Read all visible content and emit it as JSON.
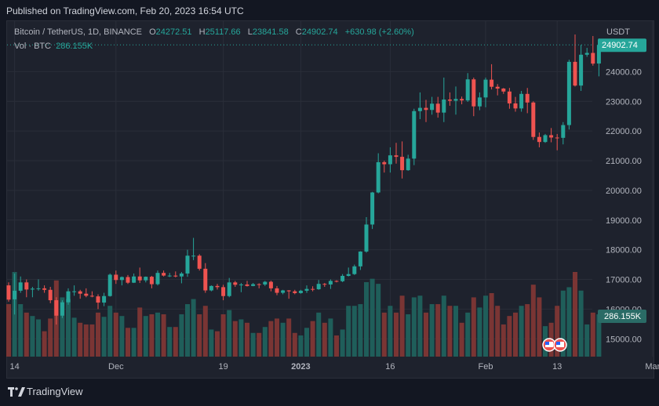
{
  "header": {
    "published": "Published on TradingView.com, Feb 20, 2023 16:54 UTC"
  },
  "legend": {
    "symbol": "Bitcoin / TetherUS, 1D, BINANCE",
    "o_label": "O",
    "o_value": "24272.51",
    "h_label": "H",
    "h_value": "25117.66",
    "l_label": "L",
    "l_value": "23841.58",
    "c_label": "C",
    "c_value": "24902.74",
    "change": "+630.98 (+2.60%)",
    "vol_label": "Vol · BTC",
    "vol_value": "286.155K"
  },
  "axis": {
    "unit": "USDT",
    "last_price_label": "24902.74",
    "last_volume_label": "286.155K"
  },
  "footer": {
    "brand": "TradingView"
  },
  "colors": {
    "up": "#26a69a",
    "down": "#ef5350",
    "background": "#1e222d"
  },
  "chart_data": {
    "type": "candlestick",
    "y_ticks": [
      "15000.00",
      "16000.00",
      "17000.00",
      "18000.00",
      "19000.00",
      "20000.00",
      "21000.00",
      "22000.00",
      "23000.00",
      "24000.00"
    ],
    "y_tick_values": [
      15000,
      16000,
      17000,
      18000,
      19000,
      20000,
      21000,
      22000,
      23000,
      24000
    ],
    "ylim": [
      14400,
      25700
    ],
    "x_ticks": [
      {
        "label": "14",
        "date": "2022-11-14"
      },
      {
        "label": "Dec",
        "date": "2022-12-01"
      },
      {
        "label": "19",
        "date": "2022-12-19"
      },
      {
        "label": "2023",
        "date": "2023-01-01"
      },
      {
        "label": "16",
        "date": "2023-01-16"
      },
      {
        "label": "Feb",
        "date": "2023-02-01"
      },
      {
        "label": "13",
        "date": "2023-02-13"
      },
      {
        "label": "Mar",
        "date": "2023-03-01"
      }
    ],
    "last_price": 24902.74,
    "candles": [
      {
        "date": "2022-11-13",
        "o": 16800,
        "h": 16900,
        "l": 16250,
        "c": 16320,
        "v": 0.62
      },
      {
        "date": "2022-11-14",
        "o": 16330,
        "h": 17200,
        "l": 15820,
        "c": 16620,
        "v": 1.0
      },
      {
        "date": "2022-11-15",
        "o": 16620,
        "h": 17100,
        "l": 16550,
        "c": 16900,
        "v": 0.62
      },
      {
        "date": "2022-11-16",
        "o": 16900,
        "h": 17000,
        "l": 16400,
        "c": 16660,
        "v": 0.52
      },
      {
        "date": "2022-11-17",
        "o": 16660,
        "h": 16750,
        "l": 16400,
        "c": 16690,
        "v": 0.48
      },
      {
        "date": "2022-11-18",
        "o": 16690,
        "h": 17000,
        "l": 16620,
        "c": 16700,
        "v": 0.44
      },
      {
        "date": "2022-11-19",
        "o": 16700,
        "h": 16800,
        "l": 16550,
        "c": 16650,
        "v": 0.3
      },
      {
        "date": "2022-11-20",
        "o": 16650,
        "h": 16750,
        "l": 16200,
        "c": 16300,
        "v": 0.45
      },
      {
        "date": "2022-11-21",
        "o": 16300,
        "h": 16400,
        "l": 15480,
        "c": 15780,
        "v": 0.9
      },
      {
        "date": "2022-11-22",
        "o": 15780,
        "h": 16300,
        "l": 15700,
        "c": 16230,
        "v": 0.7
      },
      {
        "date": "2022-11-23",
        "o": 16230,
        "h": 16700,
        "l": 16150,
        "c": 16600,
        "v": 0.68
      },
      {
        "date": "2022-11-24",
        "o": 16600,
        "h": 16800,
        "l": 16450,
        "c": 16600,
        "v": 0.46
      },
      {
        "date": "2022-11-25",
        "o": 16600,
        "h": 16650,
        "l": 16350,
        "c": 16520,
        "v": 0.4
      },
      {
        "date": "2022-11-26",
        "o": 16520,
        "h": 16700,
        "l": 16400,
        "c": 16450,
        "v": 0.38
      },
      {
        "date": "2022-11-27",
        "o": 16450,
        "h": 16600,
        "l": 16400,
        "c": 16430,
        "v": 0.38
      },
      {
        "date": "2022-11-28",
        "o": 16430,
        "h": 16500,
        "l": 16000,
        "c": 16220,
        "v": 0.52
      },
      {
        "date": "2022-11-29",
        "o": 16220,
        "h": 16550,
        "l": 16100,
        "c": 16440,
        "v": 0.47
      },
      {
        "date": "2022-11-30",
        "o": 16440,
        "h": 17200,
        "l": 16420,
        "c": 17160,
        "v": 0.6
      },
      {
        "date": "2022-12-01",
        "o": 17160,
        "h": 17300,
        "l": 16850,
        "c": 16980,
        "v": 0.52
      },
      {
        "date": "2022-12-02",
        "o": 16980,
        "h": 17100,
        "l": 16800,
        "c": 17080,
        "v": 0.48
      },
      {
        "date": "2022-12-03",
        "o": 17080,
        "h": 17150,
        "l": 16850,
        "c": 16890,
        "v": 0.34
      },
      {
        "date": "2022-12-04",
        "o": 16890,
        "h": 17200,
        "l": 16880,
        "c": 17100,
        "v": 0.34
      },
      {
        "date": "2022-12-05",
        "o": 17100,
        "h": 17400,
        "l": 16880,
        "c": 16970,
        "v": 0.58
      },
      {
        "date": "2022-12-06",
        "o": 16970,
        "h": 17100,
        "l": 16900,
        "c": 17090,
        "v": 0.48
      },
      {
        "date": "2022-12-07",
        "o": 17090,
        "h": 17120,
        "l": 16700,
        "c": 16840,
        "v": 0.5
      },
      {
        "date": "2022-12-08",
        "o": 16840,
        "h": 17300,
        "l": 16800,
        "c": 17220,
        "v": 0.52
      },
      {
        "date": "2022-12-09",
        "o": 17220,
        "h": 17300,
        "l": 17100,
        "c": 17130,
        "v": 0.5
      },
      {
        "date": "2022-12-10",
        "o": 17130,
        "h": 17220,
        "l": 17080,
        "c": 17130,
        "v": 0.35
      },
      {
        "date": "2022-12-11",
        "o": 17130,
        "h": 17270,
        "l": 17070,
        "c": 17100,
        "v": 0.35
      },
      {
        "date": "2022-12-12",
        "o": 17100,
        "h": 17250,
        "l": 16870,
        "c": 17200,
        "v": 0.5
      },
      {
        "date": "2022-12-13",
        "o": 17200,
        "h": 18000,
        "l": 17090,
        "c": 17800,
        "v": 0.62
      },
      {
        "date": "2022-12-14",
        "o": 17800,
        "h": 18400,
        "l": 17650,
        "c": 17800,
        "v": 0.68
      },
      {
        "date": "2022-12-15",
        "o": 17800,
        "h": 17850,
        "l": 17300,
        "c": 17360,
        "v": 0.5
      },
      {
        "date": "2022-12-16",
        "o": 17360,
        "h": 17550,
        "l": 16550,
        "c": 16630,
        "v": 0.6
      },
      {
        "date": "2022-12-17",
        "o": 16630,
        "h": 16800,
        "l": 16600,
        "c": 16780,
        "v": 0.32
      },
      {
        "date": "2022-12-18",
        "o": 16780,
        "h": 16850,
        "l": 16660,
        "c": 16740,
        "v": 0.3
      },
      {
        "date": "2022-12-19",
        "o": 16740,
        "h": 16820,
        "l": 16300,
        "c": 16440,
        "v": 0.5
      },
      {
        "date": "2022-12-20",
        "o": 16440,
        "h": 17050,
        "l": 16400,
        "c": 16900,
        "v": 0.55
      },
      {
        "date": "2022-12-21",
        "o": 16900,
        "h": 16950,
        "l": 16750,
        "c": 16820,
        "v": 0.42
      },
      {
        "date": "2022-12-22",
        "o": 16820,
        "h": 16880,
        "l": 16570,
        "c": 16830,
        "v": 0.44
      },
      {
        "date": "2022-12-23",
        "o": 16830,
        "h": 16950,
        "l": 16760,
        "c": 16780,
        "v": 0.4
      },
      {
        "date": "2022-12-24",
        "o": 16780,
        "h": 16880,
        "l": 16770,
        "c": 16840,
        "v": 0.28
      },
      {
        "date": "2022-12-25",
        "o": 16840,
        "h": 16870,
        "l": 16700,
        "c": 16830,
        "v": 0.28
      },
      {
        "date": "2022-12-26",
        "o": 16830,
        "h": 16950,
        "l": 16780,
        "c": 16920,
        "v": 0.35
      },
      {
        "date": "2022-12-27",
        "o": 16920,
        "h": 16960,
        "l": 16600,
        "c": 16700,
        "v": 0.42
      },
      {
        "date": "2022-12-28",
        "o": 16700,
        "h": 16780,
        "l": 16470,
        "c": 16550,
        "v": 0.45
      },
      {
        "date": "2022-12-29",
        "o": 16550,
        "h": 16650,
        "l": 16500,
        "c": 16630,
        "v": 0.4
      },
      {
        "date": "2022-12-30",
        "o": 16630,
        "h": 16640,
        "l": 16350,
        "c": 16600,
        "v": 0.45
      },
      {
        "date": "2022-12-31",
        "o": 16600,
        "h": 16650,
        "l": 16500,
        "c": 16540,
        "v": 0.28
      },
      {
        "date": "2023-01-01",
        "o": 16540,
        "h": 16650,
        "l": 16520,
        "c": 16620,
        "v": 0.25
      },
      {
        "date": "2023-01-02",
        "o": 16620,
        "h": 16800,
        "l": 16550,
        "c": 16680,
        "v": 0.34
      },
      {
        "date": "2023-01-03",
        "o": 16680,
        "h": 16770,
        "l": 16600,
        "c": 16670,
        "v": 0.42
      },
      {
        "date": "2023-01-04",
        "o": 16670,
        "h": 16980,
        "l": 16650,
        "c": 16850,
        "v": 0.52
      },
      {
        "date": "2023-01-05",
        "o": 16850,
        "h": 16880,
        "l": 16750,
        "c": 16830,
        "v": 0.4
      },
      {
        "date": "2023-01-06",
        "o": 16830,
        "h": 17000,
        "l": 16680,
        "c": 16950,
        "v": 0.45
      },
      {
        "date": "2023-01-07",
        "o": 16950,
        "h": 16970,
        "l": 16900,
        "c": 16940,
        "v": 0.25
      },
      {
        "date": "2023-01-08",
        "o": 16940,
        "h": 17180,
        "l": 16910,
        "c": 17120,
        "v": 0.32
      },
      {
        "date": "2023-01-09",
        "o": 17120,
        "h": 17400,
        "l": 17100,
        "c": 17180,
        "v": 0.6
      },
      {
        "date": "2023-01-10",
        "o": 17180,
        "h": 17500,
        "l": 17150,
        "c": 17440,
        "v": 0.6
      },
      {
        "date": "2023-01-11",
        "o": 17440,
        "h": 17950,
        "l": 17320,
        "c": 17940,
        "v": 0.62
      },
      {
        "date": "2023-01-12",
        "o": 17940,
        "h": 19100,
        "l": 17900,
        "c": 18850,
        "v": 0.88
      },
      {
        "date": "2023-01-13",
        "o": 18850,
        "h": 19950,
        "l": 18700,
        "c": 19930,
        "v": 0.92
      },
      {
        "date": "2023-01-14",
        "o": 19930,
        "h": 21250,
        "l": 19900,
        "c": 20950,
        "v": 0.86
      },
      {
        "date": "2023-01-15",
        "o": 20950,
        "h": 21000,
        "l": 20600,
        "c": 20880,
        "v": 0.52
      },
      {
        "date": "2023-01-16",
        "o": 20880,
        "h": 21450,
        "l": 20600,
        "c": 21180,
        "v": 0.6
      },
      {
        "date": "2023-01-17",
        "o": 21180,
        "h": 21600,
        "l": 20900,
        "c": 21130,
        "v": 0.52
      },
      {
        "date": "2023-01-18",
        "o": 21130,
        "h": 21650,
        "l": 20400,
        "c": 20680,
        "v": 0.72
      },
      {
        "date": "2023-01-19",
        "o": 20680,
        "h": 21200,
        "l": 20660,
        "c": 21070,
        "v": 0.5
      },
      {
        "date": "2023-01-20",
        "o": 21070,
        "h": 22750,
        "l": 20850,
        "c": 22670,
        "v": 0.7
      },
      {
        "date": "2023-01-21",
        "o": 22670,
        "h": 23300,
        "l": 22400,
        "c": 22780,
        "v": 0.72
      },
      {
        "date": "2023-01-22",
        "o": 22780,
        "h": 23050,
        "l": 22300,
        "c": 22710,
        "v": 0.52
      },
      {
        "date": "2023-01-23",
        "o": 22710,
        "h": 23150,
        "l": 22550,
        "c": 22920,
        "v": 0.62
      },
      {
        "date": "2023-01-24",
        "o": 22920,
        "h": 23150,
        "l": 22450,
        "c": 22620,
        "v": 0.62
      },
      {
        "date": "2023-01-25",
        "o": 22620,
        "h": 23800,
        "l": 22300,
        "c": 23060,
        "v": 0.72
      },
      {
        "date": "2023-01-26",
        "o": 23060,
        "h": 23300,
        "l": 22850,
        "c": 23020,
        "v": 0.6
      },
      {
        "date": "2023-01-27",
        "o": 23020,
        "h": 23500,
        "l": 22550,
        "c": 23080,
        "v": 0.6
      },
      {
        "date": "2023-01-28",
        "o": 23080,
        "h": 23160,
        "l": 22900,
        "c": 23030,
        "v": 0.4
      },
      {
        "date": "2023-01-29",
        "o": 23030,
        "h": 23950,
        "l": 22980,
        "c": 23740,
        "v": 0.52
      },
      {
        "date": "2023-01-30",
        "o": 23740,
        "h": 23800,
        "l": 22500,
        "c": 22830,
        "v": 0.7
      },
      {
        "date": "2023-01-31",
        "o": 22830,
        "h": 23300,
        "l": 22700,
        "c": 23130,
        "v": 0.58
      },
      {
        "date": "2023-02-01",
        "o": 23130,
        "h": 23800,
        "l": 22800,
        "c": 23730,
        "v": 0.72
      },
      {
        "date": "2023-02-02",
        "o": 23730,
        "h": 24250,
        "l": 23400,
        "c": 23490,
        "v": 0.75
      },
      {
        "date": "2023-02-03",
        "o": 23490,
        "h": 23580,
        "l": 23200,
        "c": 23430,
        "v": 0.6
      },
      {
        "date": "2023-02-04",
        "o": 23430,
        "h": 23450,
        "l": 23250,
        "c": 23330,
        "v": 0.38
      },
      {
        "date": "2023-02-05",
        "o": 23330,
        "h": 23450,
        "l": 22750,
        "c": 22930,
        "v": 0.48
      },
      {
        "date": "2023-02-06",
        "o": 22930,
        "h": 23150,
        "l": 22650,
        "c": 22760,
        "v": 0.52
      },
      {
        "date": "2023-02-07",
        "o": 22760,
        "h": 23350,
        "l": 22650,
        "c": 23250,
        "v": 0.6
      },
      {
        "date": "2023-02-08",
        "o": 23250,
        "h": 23450,
        "l": 22600,
        "c": 22960,
        "v": 0.62
      },
      {
        "date": "2023-02-09",
        "o": 22960,
        "h": 23000,
        "l": 21700,
        "c": 21800,
        "v": 0.85
      },
      {
        "date": "2023-02-10",
        "o": 21800,
        "h": 21950,
        "l": 21450,
        "c": 21630,
        "v": 0.7
      },
      {
        "date": "2023-02-11",
        "o": 21630,
        "h": 21900,
        "l": 21600,
        "c": 21860,
        "v": 0.36
      },
      {
        "date": "2023-02-12",
        "o": 21860,
        "h": 22100,
        "l": 21620,
        "c": 21780,
        "v": 0.4
      },
      {
        "date": "2023-02-13",
        "o": 21780,
        "h": 21900,
        "l": 21350,
        "c": 21770,
        "v": 0.6
      },
      {
        "date": "2023-02-14",
        "o": 21770,
        "h": 22300,
        "l": 21550,
        "c": 22200,
        "v": 0.78
      },
      {
        "date": "2023-02-15",
        "o": 22200,
        "h": 24400,
        "l": 22050,
        "c": 24330,
        "v": 0.82
      },
      {
        "date": "2023-02-16",
        "o": 24330,
        "h": 25250,
        "l": 23500,
        "c": 23530,
        "v": 1.0
      },
      {
        "date": "2023-02-17",
        "o": 23530,
        "h": 24900,
        "l": 23350,
        "c": 24570,
        "v": 0.78
      },
      {
        "date": "2023-02-18",
        "o": 24570,
        "h": 24800,
        "l": 24500,
        "c": 24630,
        "v": 0.38
      },
      {
        "date": "2023-02-19",
        "o": 24630,
        "h": 25200,
        "l": 24200,
        "c": 24270,
        "v": 0.52
      },
      {
        "date": "2023-02-20",
        "o": 24272.51,
        "h": 25117.66,
        "l": 23841.58,
        "c": 24902.74,
        "v": 0.5
      }
    ]
  }
}
